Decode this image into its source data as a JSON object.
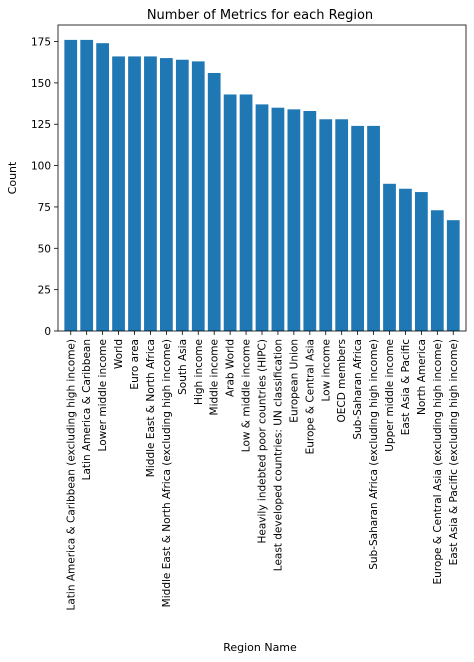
{
  "chart_data": {
    "type": "bar",
    "title": "Number of Metrics for each Region",
    "xlabel": "Region Name",
    "ylabel": "Count",
    "ylim": [
      0,
      185
    ],
    "yticks": [
      0,
      25,
      50,
      75,
      100,
      125,
      150,
      175
    ],
    "grid": false,
    "bar_color": "#1f77b4",
    "categories": [
      "Latin America & Caribbean (excluding high income)",
      "Latin America & Caribbean",
      "Lower middle income",
      "World",
      "Euro area",
      "Middle East & North Africa",
      "Middle East & North Africa (excluding high income)",
      "South Asia",
      "High income",
      "Middle income",
      "Arab World",
      "Low & middle income",
      "Heavily indebted poor countries (HIPC)",
      "Least developed countries: UN classification",
      "European Union",
      "Europe & Central Asia",
      "Low income",
      "OECD members",
      "Sub-Saharan Africa",
      "Sub-Saharan Africa (excluding high income)",
      "Upper middle income",
      "East Asia & Pacific",
      "North America",
      "Europe & Central Asia (excluding high income)",
      "East Asia & Pacific (excluding high income)"
    ],
    "values": [
      176,
      176,
      174,
      166,
      166,
      166,
      165,
      164,
      163,
      156,
      143,
      143,
      137,
      135,
      134,
      133,
      128,
      128,
      124,
      124,
      89,
      86,
      84,
      73,
      67
    ]
  }
}
